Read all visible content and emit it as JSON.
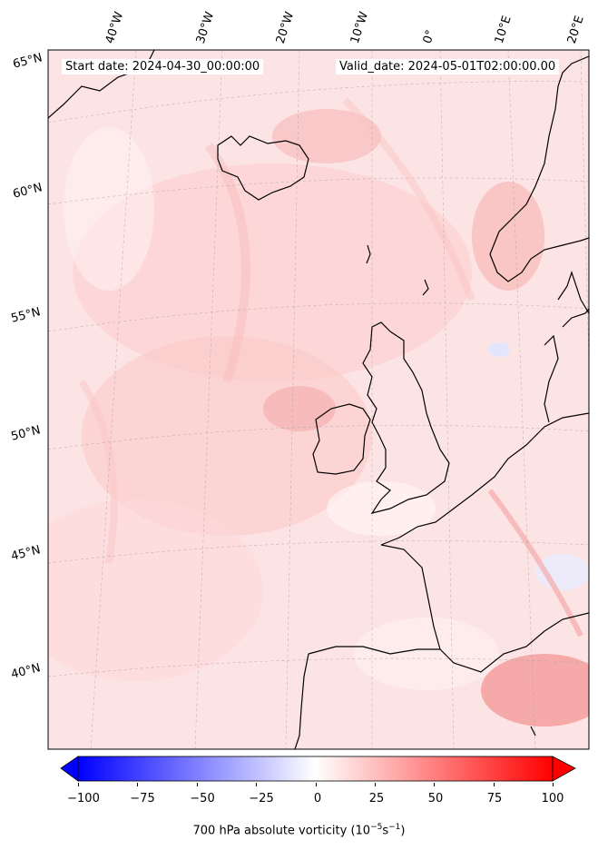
{
  "header": {
    "start_label": "Start date: 2024-04-30_00:00:00",
    "valid_label": "Valid_date: 2024-05-01T02:00:00.00"
  },
  "longitude_labels": [
    "40°W",
    "30°W",
    "20°W",
    "10°W",
    "0°",
    "10°E",
    "20°E"
  ],
  "latitude_labels": [
    "65°N",
    "60°N",
    "55°N",
    "50°N",
    "45°N",
    "40°N"
  ],
  "colorbar": {
    "min": -100,
    "max": 100,
    "ticks": [
      "−100",
      "−75",
      "−50",
      "−25",
      "0",
      "25",
      "50",
      "75",
      "100"
    ],
    "title_text": "700 hPa absolute vorticity (10",
    "title_sup1": "−5",
    "title_mid": "s",
    "title_sup2": "−1",
    "title_end": ")",
    "low_color": "#0000ff",
    "mid_color": "#ffffff",
    "high_color": "#ff0000"
  }
}
